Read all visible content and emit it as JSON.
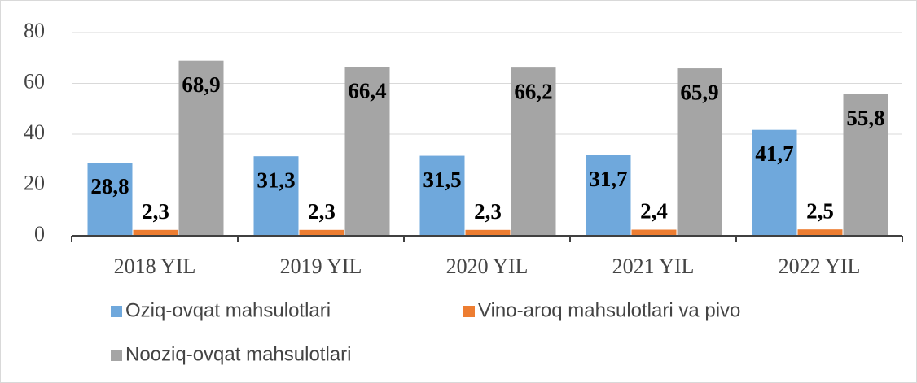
{
  "chart_data": {
    "type": "bar",
    "categories": [
      "2018 YIL",
      "2019 YIL",
      "2020 YIL",
      "2021 YIL",
      "2022 YIL"
    ],
    "series": [
      {
        "name": "Oziq-ovqat mahsulotlari",
        "color": "#6fa8dc",
        "values": [
          28.8,
          31.3,
          31.5,
          31.7,
          41.7
        ],
        "value_labels": [
          "28,8",
          "31,3",
          "31,5",
          "31,7",
          "41,7"
        ]
      },
      {
        "name": "Vino-aroq mahsulotlari va pivo",
        "color": "#ed7d31",
        "values": [
          2.3,
          2.3,
          2.3,
          2.4,
          2.5
        ],
        "value_labels": [
          "2,3",
          "2,3",
          "2,3",
          "2,4",
          "2,5"
        ]
      },
      {
        "name": "Nooziq-ovqat mahsulotlari",
        "color": "#a5a5a5",
        "values": [
          68.9,
          66.4,
          66.2,
          65.9,
          55.8
        ],
        "value_labels": [
          "68,9",
          "66,4",
          "66,2",
          "65,9",
          "55,8"
        ]
      }
    ],
    "ylim": [
      0,
      80
    ],
    "yticks": [
      0,
      20,
      40,
      60,
      80
    ],
    "grid": true,
    "legend": "bottom"
  }
}
